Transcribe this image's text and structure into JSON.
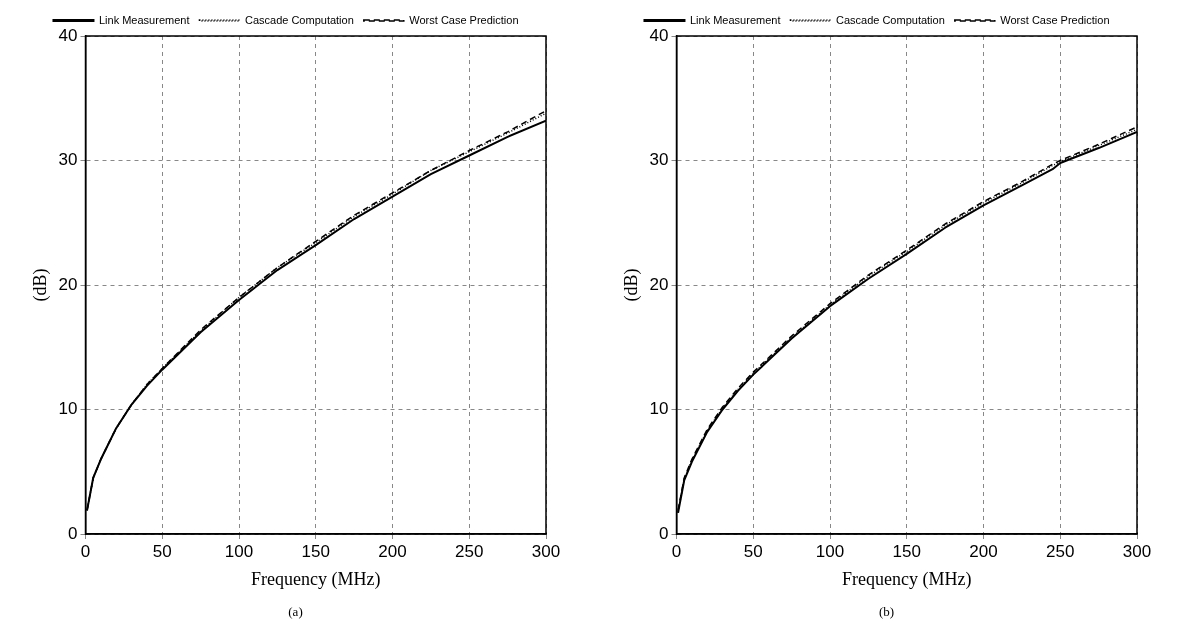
{
  "chart_data": [
    {
      "type": "line",
      "xlabel": "Frequency (MHz)",
      "ylabel": "(dB)",
      "annotations": [
        "(a)"
      ],
      "xlim": [
        0,
        300
      ],
      "xticks": [
        0,
        50,
        100,
        150,
        200,
        250,
        300
      ],
      "ylim": [
        0,
        40
      ],
      "yticks": [
        0,
        10,
        20,
        30,
        40
      ],
      "grid": true,
      "legend": "top",
      "marker": "none",
      "x": [
        1,
        5,
        10,
        20,
        30,
        40,
        50,
        75,
        100,
        125,
        150,
        175,
        200,
        225,
        250,
        275,
        300
      ],
      "series": [
        {
          "name": "Link Measurement",
          "color": "#000000",
          "line_style": "solid",
          "values": [
            1.9,
            4.5,
            6,
            8.5,
            10.4,
            11.9,
            13.2,
            16.2,
            18.8,
            21.2,
            23.2,
            25.3,
            27.1,
            28.9,
            30.4,
            31.9,
            33.2
          ]
        },
        {
          "name": "Cascade Computation",
          "color": "#000000",
          "line_style": "dotted",
          "values": [
            1.9,
            4.5,
            6,
            8.5,
            10.4,
            12,
            13.3,
            16.3,
            19,
            21.4,
            23.4,
            25.5,
            27.3,
            29.2,
            30.7,
            32.2,
            33.8
          ]
        },
        {
          "name": "Worst Case Prediction",
          "color": "#000000",
          "line_style": "dashed",
          "values": [
            1.9,
            4.5,
            6,
            8.5,
            10.4,
            12,
            13.3,
            16.4,
            19,
            21.4,
            23.5,
            25.6,
            27.4,
            29.2,
            30.8,
            32.3,
            34
          ]
        }
      ]
    },
    {
      "type": "line",
      "xlabel": "Frequency (MHz)",
      "ylabel": "(dB)",
      "annotations": [
        "(b)"
      ],
      "xlim": [
        0,
        300
      ],
      "xticks": [
        0,
        50,
        100,
        150,
        200,
        250,
        300
      ],
      "ylim": [
        0,
        40
      ],
      "yticks": [
        0,
        10,
        20,
        30,
        40
      ],
      "grid": true,
      "legend": "top",
      "marker": "none",
      "x": [
        1,
        5,
        10,
        20,
        30,
        40,
        50,
        75,
        100,
        125,
        150,
        175,
        200,
        225,
        245,
        250,
        275,
        300
      ],
      "series": [
        {
          "name": "Link Measurement",
          "color": "#000000",
          "line_style": "solid",
          "values": [
            1.7,
            4.3,
            5.8,
            8.2,
            10,
            11.5,
            12.8,
            15.7,
            18.3,
            20.5,
            22.5,
            24.6,
            26.4,
            28,
            29.3,
            29.8,
            31,
            32.3
          ]
        },
        {
          "name": "Cascade Computation",
          "color": "#000000",
          "line_style": "dotted",
          "values": [
            1.8,
            4.4,
            5.9,
            8.3,
            10.1,
            11.6,
            12.9,
            15.8,
            18.4,
            20.7,
            22.7,
            24.8,
            26.6,
            28.2,
            29.6,
            29.9,
            31.2,
            32.5
          ]
        },
        {
          "name": "Worst Case Prediction",
          "color": "#000000",
          "line_style": "dashed",
          "values": [
            1.9,
            4.5,
            6,
            8.4,
            10.2,
            11.7,
            13,
            15.9,
            18.5,
            20.8,
            22.8,
            24.9,
            26.7,
            28.3,
            29.7,
            30,
            31.3,
            32.7
          ]
        }
      ]
    }
  ]
}
